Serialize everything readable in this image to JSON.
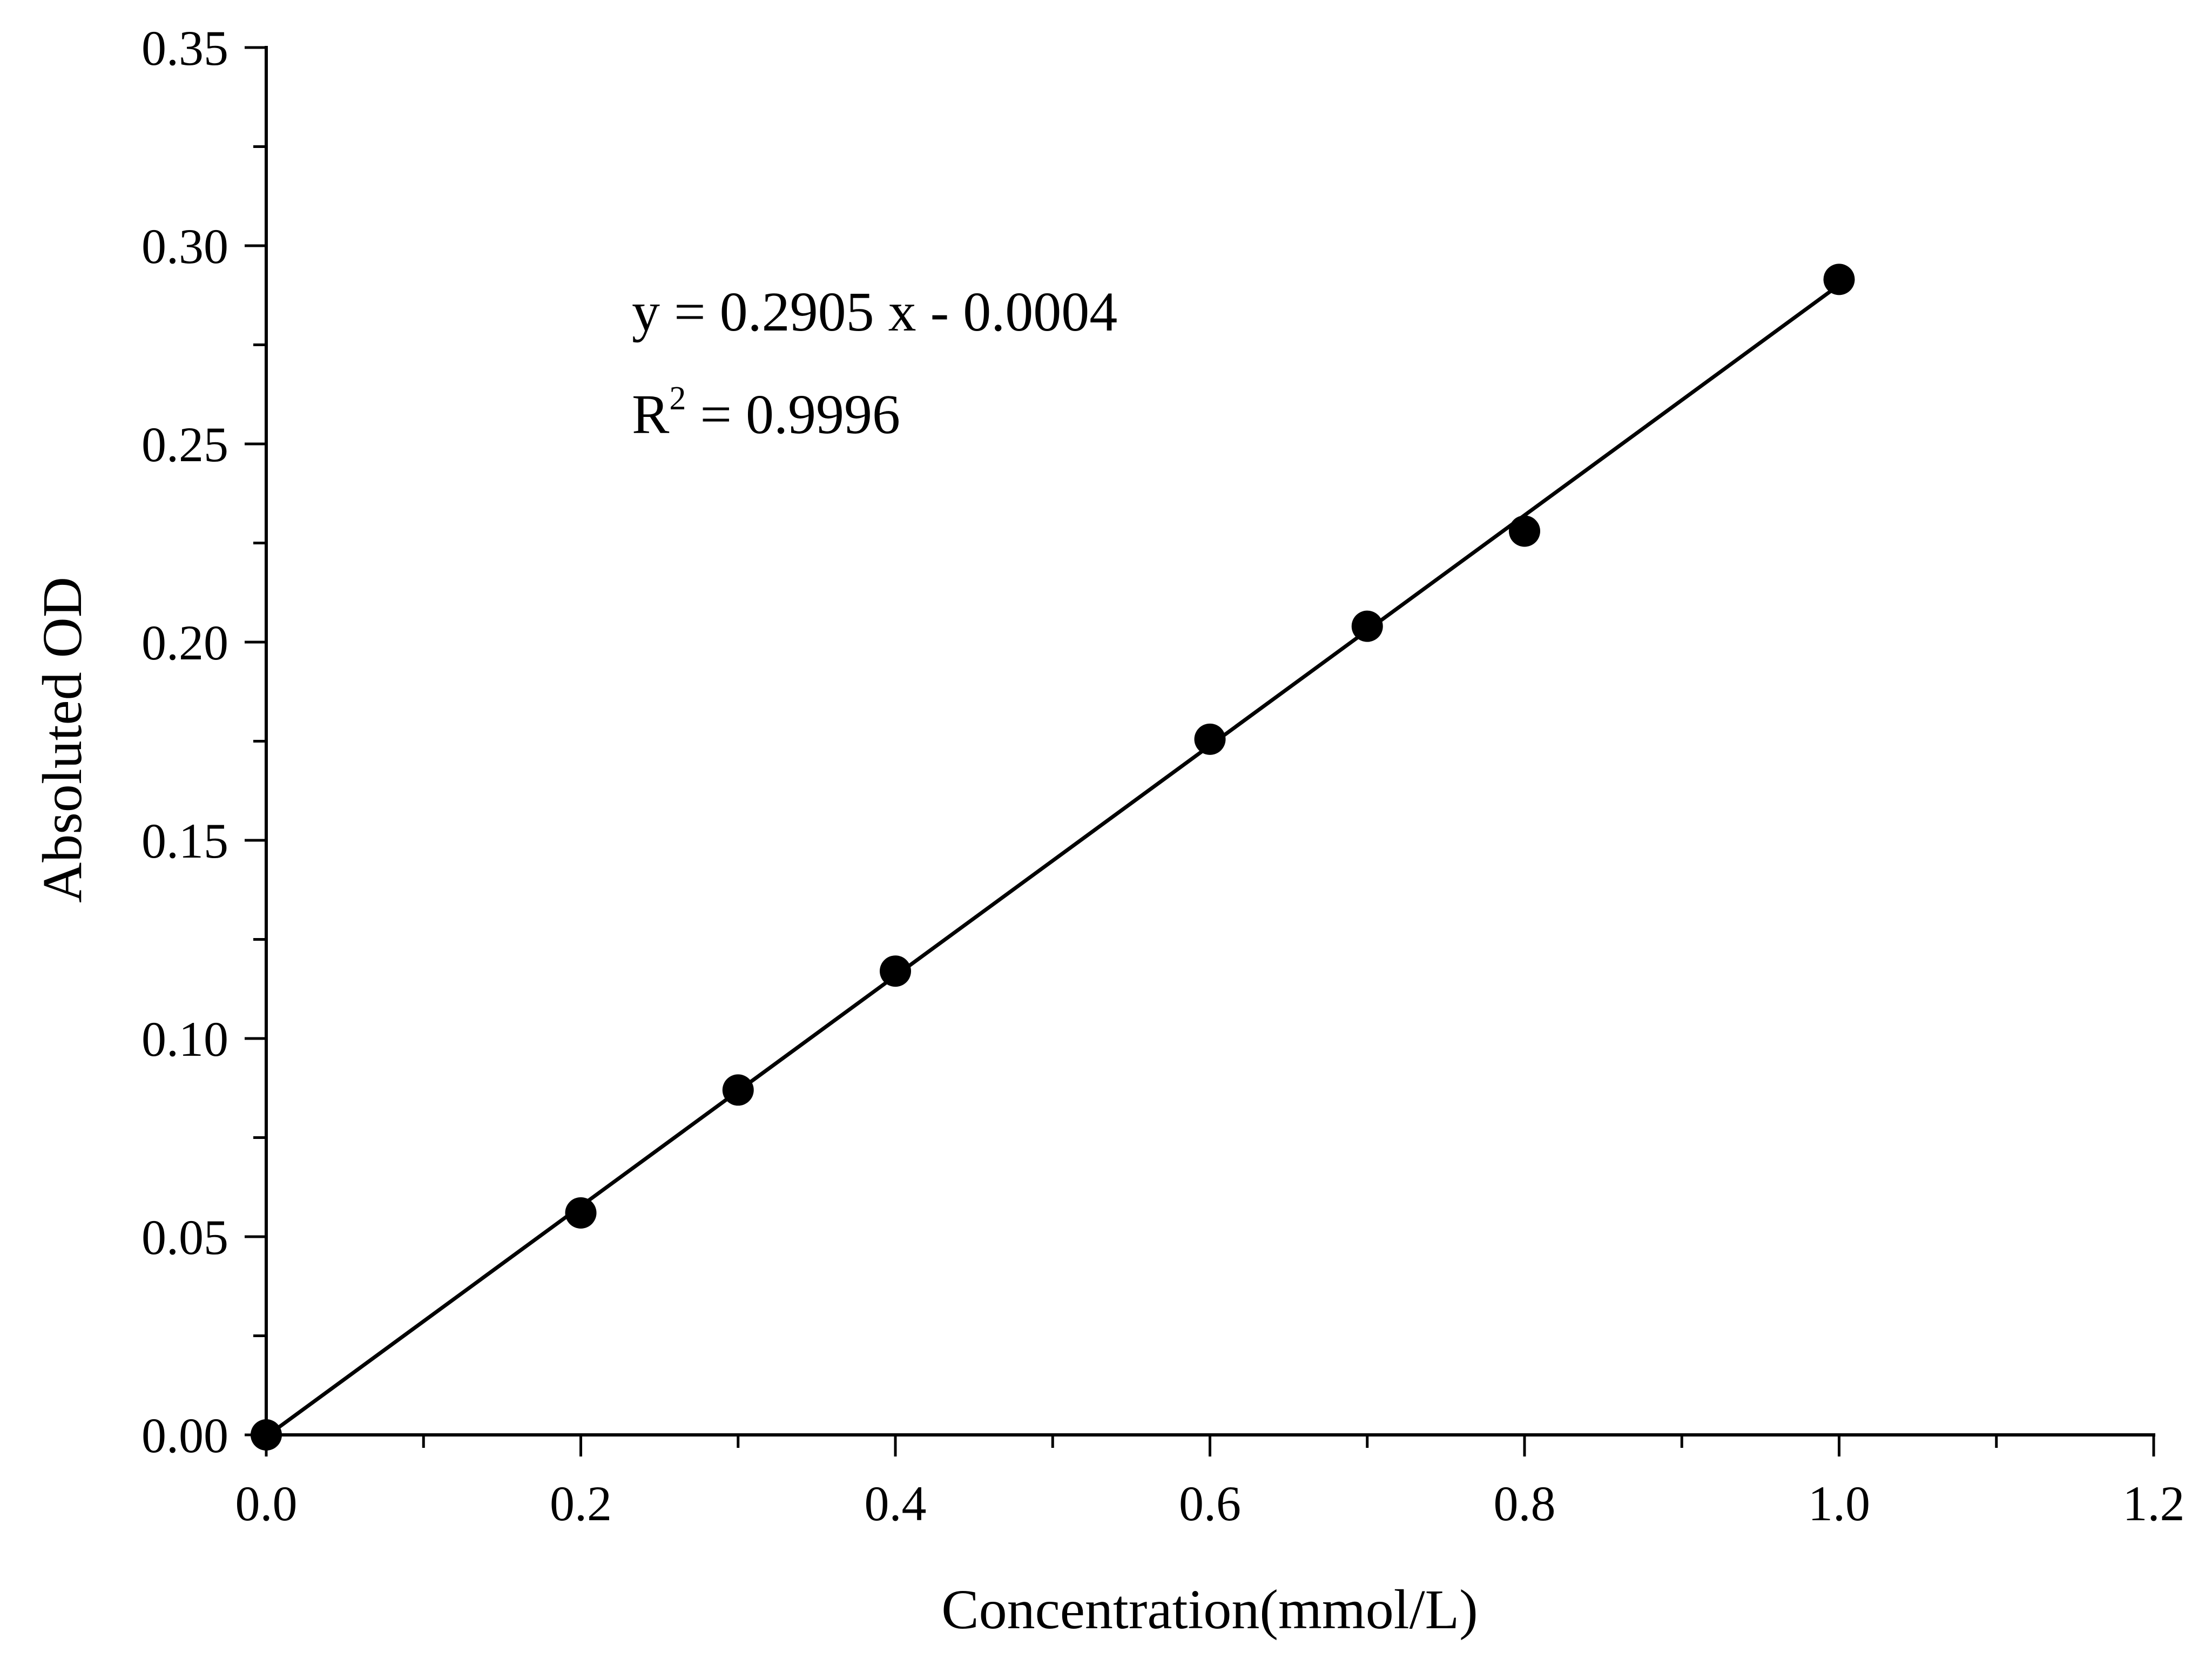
{
  "chart_data": {
    "type": "scatter",
    "xlabel": "Concentration(mmol/L)",
    "ylabel": "Absoluted OD",
    "xlim": [
      0,
      1.2
    ],
    "ylim": [
      0,
      0.35
    ],
    "x_ticks": [
      "0.0",
      "0.2",
      "0.4",
      "0.6",
      "0.8",
      "1.0",
      "1.2"
    ],
    "y_ticks": [
      "0.00",
      "0.05",
      "0.10",
      "0.15",
      "0.20",
      "0.25",
      "0.30",
      "0.35"
    ],
    "x_minor_step": 0.1,
    "y_minor_step": 0.025,
    "grid": false,
    "series": [
      {
        "x": [
          0.0,
          0.2,
          0.3,
          0.4,
          0.6,
          0.7,
          0.8,
          1.0
        ],
        "y": [
          0.0,
          0.056,
          0.087,
          0.117,
          0.1755,
          0.204,
          0.228,
          0.2915
        ]
      }
    ],
    "fit": {
      "slope": 0.2905,
      "intercept": -0.0004
    },
    "annotations": {
      "equation": "y = 0.2905 x - 0.0004",
      "r2_prefix": "R",
      "r2_sup": "2",
      "r2_value": " = 0.9996"
    },
    "colors": {
      "marker": "#000000",
      "line": "#000000"
    }
  }
}
